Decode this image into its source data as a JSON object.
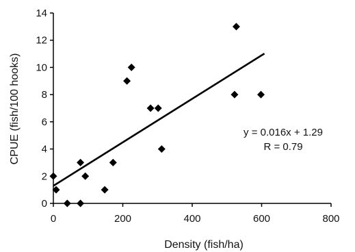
{
  "chart_data": {
    "type": "scatter",
    "xlabel": "Density (fish/ha)",
    "ylabel": "CPUE (fish/100 hooks)",
    "xlim": [
      0,
      800
    ],
    "ylim": [
      0,
      14
    ],
    "x_ticks": [
      0,
      200,
      400,
      600,
      800
    ],
    "y_ticks": [
      0,
      2,
      4,
      6,
      8,
      10,
      12,
      14
    ],
    "grid": false,
    "legend": "none",
    "marker": "diamond",
    "marker_color": "#000000",
    "series": [
      {
        "points": [
          {
            "x": 0,
            "y": 2
          },
          {
            "x": 8,
            "y": 1
          },
          {
            "x": 40,
            "y": 0
          },
          {
            "x": 78,
            "y": 0
          },
          {
            "x": 78,
            "y": 3
          },
          {
            "x": 92,
            "y": 2
          },
          {
            "x": 148,
            "y": 1
          },
          {
            "x": 172,
            "y": 3
          },
          {
            "x": 212,
            "y": 9
          },
          {
            "x": 225,
            "y": 10
          },
          {
            "x": 280,
            "y": 7
          },
          {
            "x": 302,
            "y": 7
          },
          {
            "x": 312,
            "y": 4
          },
          {
            "x": 522,
            "y": 8
          },
          {
            "x": 527,
            "y": 13
          },
          {
            "x": 598,
            "y": 8
          }
        ]
      }
    ],
    "trendline": {
      "slope": 0.016,
      "intercept": 1.29,
      "x_range": [
        0,
        608
      ],
      "color": "#000000"
    },
    "annotations": [
      "y = 0.016x + 1.29",
      "R = 0.79"
    ]
  }
}
